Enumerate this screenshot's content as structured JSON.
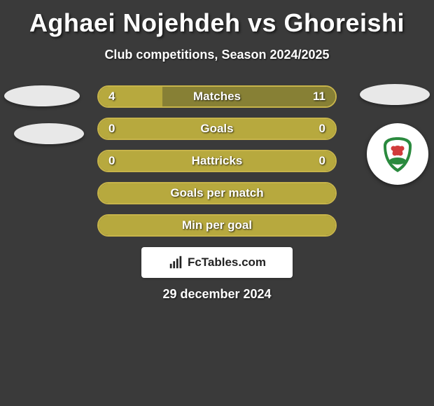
{
  "title": "Aghaei Nojehdeh vs Ghoreishi",
  "subtitle": "Club competitions, Season 2024/2025",
  "date": "29 december 2024",
  "site": "FcTables.com",
  "colors": {
    "background": "#3a3a3a",
    "bar_outline": "#c7b44a",
    "bar_dark": "#878035",
    "bar_light": "#b7a93e",
    "text": "#ffffff"
  },
  "bars": [
    {
      "label": "Matches",
      "left": "4",
      "right": "11",
      "left_fill_pct": 27
    },
    {
      "label": "Goals",
      "left": "0",
      "right": "0",
      "left_fill_pct": 100
    },
    {
      "label": "Hattricks",
      "left": "0",
      "right": "0",
      "left_fill_pct": 100
    },
    {
      "label": "Goals per match",
      "left": "",
      "right": "",
      "left_fill_pct": 100
    },
    {
      "label": "Min per goal",
      "left": "",
      "right": "",
      "left_fill_pct": 100
    }
  ],
  "right_logo": {
    "shield_color": "#2a8a3e",
    "flower_color": "#d13b3b",
    "text_color": "#1a6b2a"
  }
}
